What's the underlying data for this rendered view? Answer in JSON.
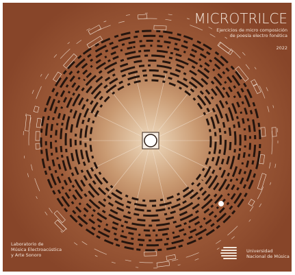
{
  "header": {
    "title": "MICROTRILCE",
    "subtitle": [
      "Ejercicios de micro composición",
      "de poesía electro fonética"
    ],
    "year": "2022"
  },
  "footer": {
    "lab": [
      "Laboratorio de",
      "Música Electroacústica",
      "y Arte Sonoro"
    ],
    "university": [
      "Universidad",
      "Nacional de Música"
    ]
  }
}
